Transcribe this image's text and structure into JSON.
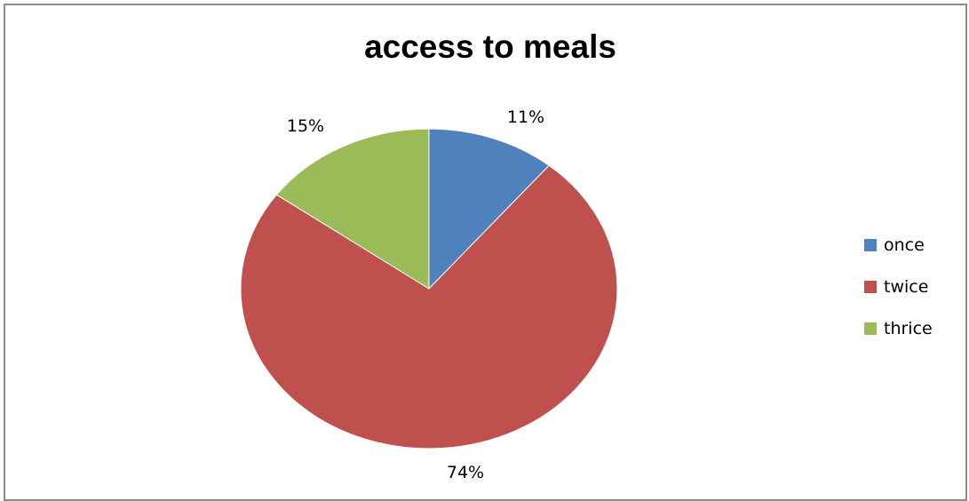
{
  "chart_data": {
    "type": "pie",
    "title": "access to meals",
    "categories": [
      "once",
      "twice",
      "thrice"
    ],
    "values": [
      11,
      74,
      15
    ],
    "labels": [
      "11%",
      "74%",
      "15%"
    ],
    "colors": [
      "#4F81BD",
      "#C0504D",
      "#9BBB59"
    ],
    "legend_position": "right"
  }
}
